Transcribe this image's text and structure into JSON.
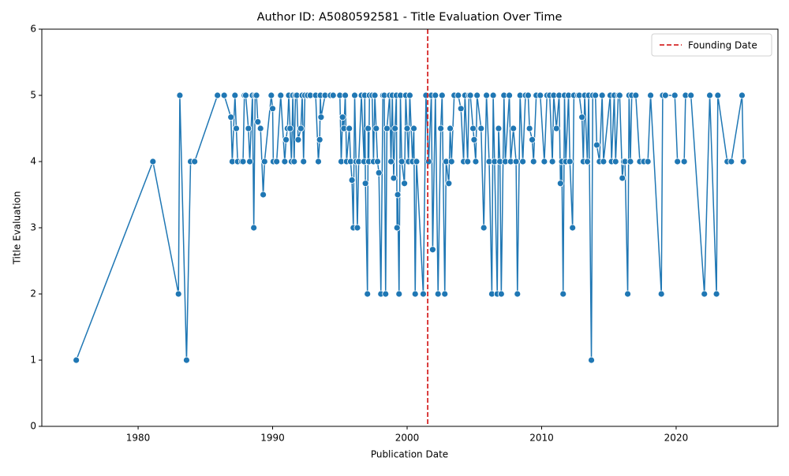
{
  "chart_data": {
    "type": "line",
    "title": "Author ID: A5080592581 - Title Evaluation Over Time",
    "x_label": "Publication Date",
    "y_label": "Title Evaluation",
    "color": "#1f77b4",
    "x": [
      1975.4,
      1981.1,
      1983.0,
      1983.1,
      1983.6,
      1983.9,
      1984.2,
      1985.9,
      1986.4,
      1986.9,
      1987.0,
      1987.2,
      1987.3,
      1987.4,
      1987.7,
      1987.8,
      1987.9,
      1988.0,
      1988.2,
      1988.3,
      1988.5,
      1988.6,
      1988.7,
      1988.8,
      1988.9,
      1989.1,
      1989.3,
      1989.4,
      1989.9,
      1990.0,
      1990.05,
      1990.3,
      1990.6,
      1990.9,
      1991.0,
      1991.1,
      1991.2,
      1991.3,
      1991.4,
      1991.5,
      1991.6,
      1991.7,
      1991.8,
      1991.9,
      1992.1,
      1992.2,
      1992.3,
      1992.4,
      1992.6,
      1992.8,
      1993.2,
      1993.4,
      1993.5,
      1993.55,
      1993.6,
      1993.9,
      1994.3,
      1994.5,
      1995.0,
      1995.1,
      1995.2,
      1995.3,
      1995.4,
      1995.5,
      1995.7,
      1995.8,
      1995.9,
      1996.0,
      1996.1,
      1996.2,
      1996.3,
      1996.4,
      1996.6,
      1996.8,
      1996.85,
      1996.9,
      1997.05,
      1997.1,
      1997.15,
      1997.2,
      1997.4,
      1997.5,
      1997.6,
      1997.7,
      1997.8,
      1997.9,
      1998.05,
      1998.2,
      1998.3,
      1998.4,
      1998.5,
      1998.7,
      1998.8,
      1998.9,
      1999.0,
      1999.1,
      1999.2,
      1999.25,
      1999.3,
      1999.4,
      1999.5,
      1999.6,
      1999.8,
      1999.9,
      2000.0,
      2000.1,
      2000.2,
      2000.4,
      2000.5,
      2000.6,
      2000.7,
      2001.2,
      2001.4,
      2001.6,
      2001.8,
      2001.9,
      2002.1,
      2002.3,
      2002.5,
      2002.6,
      2002.8,
      2002.9,
      2003.1,
      2003.2,
      2003.3,
      2003.5,
      2003.8,
      2004.0,
      2004.2,
      2004.3,
      2004.5,
      2004.6,
      2004.7,
      2004.9,
      2004.98,
      2005.1,
      2005.2,
      2005.5,
      2005.7,
      2005.9,
      2006.1,
      2006.3,
      2006.4,
      2006.5,
      2006.7,
      2006.8,
      2006.9,
      2007.0,
      2007.2,
      2007.3,
      2007.6,
      2007.7,
      2007.9,
      2008.1,
      2008.2,
      2008.4,
      2008.6,
      2008.8,
      2009.0,
      2009.1,
      2009.3,
      2009.4,
      2009.6,
      2009.9,
      2010.2,
      2010.4,
      2010.6,
      2010.8,
      2010.9,
      2011.1,
      2011.3,
      2011.4,
      2011.5,
      2011.6,
      2011.7,
      2011.8,
      2012.0,
      2012.1,
      2012.3,
      2012.4,
      2012.7,
      2012.8,
      2013.0,
      2013.1,
      2013.2,
      2013.4,
      2013.5,
      2013.7,
      2013.8,
      2014.0,
      2014.1,
      2014.3,
      2014.5,
      2014.6,
      2015.1,
      2015.2,
      2015.4,
      2015.5,
      2015.7,
      2015.8,
      2016.0,
      2016.1,
      2016.2,
      2016.4,
      2016.5,
      2016.6,
      2016.7,
      2017.0,
      2017.3,
      2017.6,
      2017.9,
      2018.1,
      2018.9,
      2019.0,
      2019.2,
      2019.9,
      2020.1,
      2020.6,
      2020.7,
      2021.1,
      2022.1,
      2022.5,
      2023.0,
      2023.1,
      2023.8,
      2024.1,
      2024.9,
      2025.0
    ],
    "values": [
      1,
      4,
      2,
      5,
      1,
      4,
      4,
      5,
      5,
      4.67,
      4,
      5,
      4.5,
      4,
      4,
      4,
      5,
      5,
      4.5,
      4,
      5,
      3,
      5,
      5,
      4.6,
      4.5,
      3.5,
      4,
      5,
      4.8,
      4,
      4,
      5,
      4,
      4.33,
      4.5,
      5,
      4.5,
      4,
      5,
      4,
      5,
      5,
      4.33,
      4.5,
      5,
      4,
      5,
      5,
      5,
      5,
      4,
      4.33,
      5,
      4.67,
      5,
      5,
      5,
      5,
      4,
      4.67,
      4.5,
      5,
      4,
      4.5,
      4,
      3.72,
      3,
      5,
      4,
      3,
      4,
      5,
      4,
      5,
      3.67,
      2,
      4.5,
      4,
      5,
      5,
      4,
      5,
      4.5,
      4,
      3.83,
      2,
      5,
      5,
      2,
      4.5,
      5,
      4,
      5,
      3.75,
      4.5,
      5,
      3,
      3.5,
      2,
      5,
      4,
      3.67,
      5,
      4.5,
      4,
      5,
      4,
      4.5,
      2,
      4,
      2,
      5,
      4,
      5,
      2.67,
      5,
      2,
      4.5,
      5,
      2,
      4,
      3.67,
      4.5,
      4,
      5,
      5,
      4.8,
      4,
      5,
      4,
      5,
      5,
      4.5,
      4.33,
      4,
      5,
      4.5,
      3,
      5,
      4,
      2,
      5,
      4,
      2,
      4.5,
      4,
      2,
      5,
      4,
      5,
      4,
      4.5,
      4,
      2,
      5,
      4,
      5,
      5,
      4.5,
      4.33,
      4,
      5,
      5,
      4,
      5,
      5,
      4,
      5,
      4.5,
      5,
      3.67,
      4,
      2,
      5,
      4,
      5,
      4,
      3,
      5,
      5,
      5,
      4.67,
      4,
      5,
      4,
      5,
      1,
      5,
      5,
      4.25,
      4,
      5,
      4,
      5,
      4,
      5,
      4,
      5,
      5,
      3.75,
      4,
      4,
      2,
      5,
      4,
      5,
      5,
      4,
      4,
      4,
      5,
      2,
      5,
      5,
      5,
      4,
      4,
      5,
      5,
      2,
      5,
      2,
      5,
      4,
      4,
      5,
      4
    ],
    "xlim": [
      1972.84,
      2027.57
    ],
    "xticks": [
      1980,
      1990,
      2000,
      2010,
      2020
    ],
    "ylim": [
      0,
      6
    ],
    "yticks": [
      0,
      1,
      2,
      3,
      4,
      5,
      6
    ],
    "founding_date": 2001.53,
    "founding_label": "Founding Date",
    "founding_color": "#d62728",
    "legend": "upper right"
  }
}
